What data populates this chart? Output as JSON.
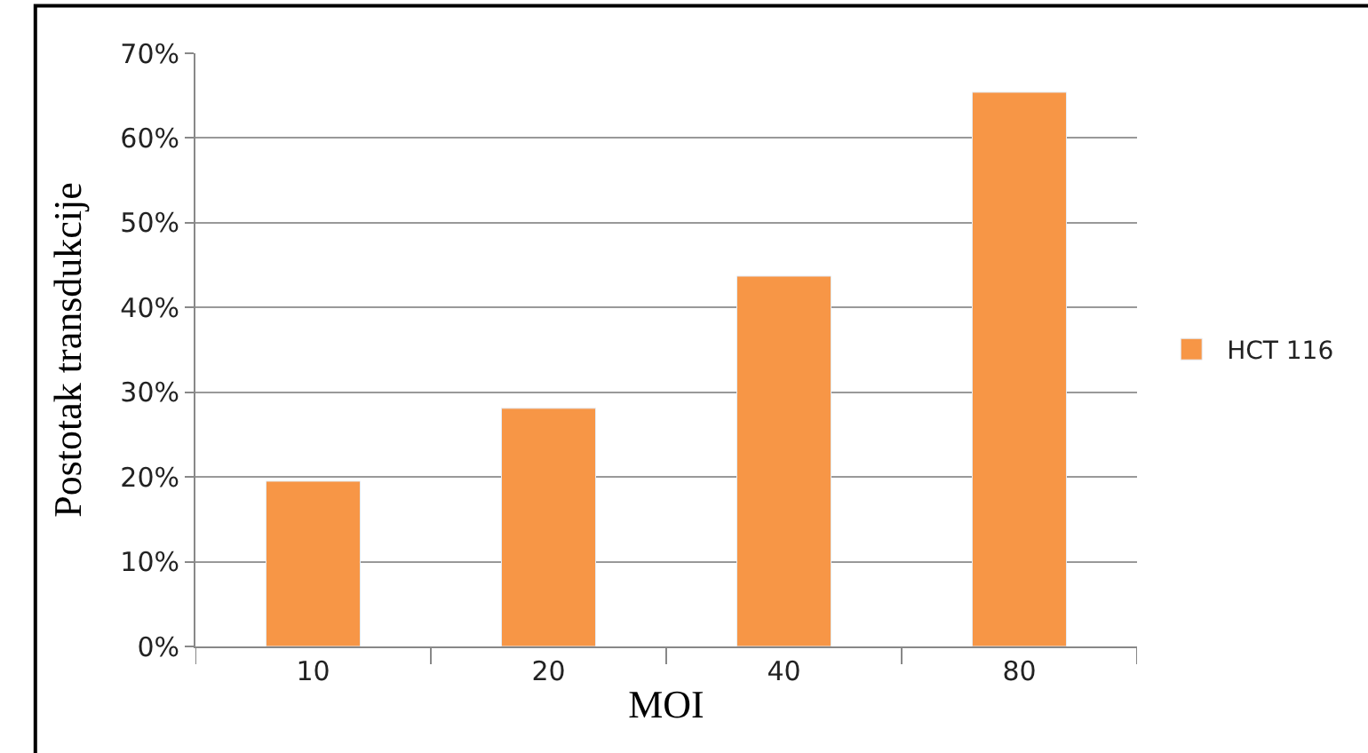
{
  "chart_data": {
    "type": "bar",
    "xlabel": "MOI",
    "ylabel": "Postotak transdukcije",
    "categories": [
      "10",
      "20",
      "40",
      "80"
    ],
    "series": [
      {
        "name": "HCT 116",
        "color": "#f79646",
        "values": [
          19.5,
          28.1,
          43.7,
          65.4
        ]
      }
    ],
    "ylim": [
      0,
      70
    ],
    "yticks": [
      {
        "value": 0,
        "label": "0%"
      },
      {
        "value": 10,
        "label": "10%"
      },
      {
        "value": 20,
        "label": "20%"
      },
      {
        "value": 30,
        "label": "30%"
      },
      {
        "value": 40,
        "label": "40%"
      },
      {
        "value": 50,
        "label": "50%"
      },
      {
        "value": 60,
        "label": "60%"
      },
      {
        "value": 70,
        "label": "70%"
      }
    ],
    "grid": "y",
    "legend": "right"
  }
}
